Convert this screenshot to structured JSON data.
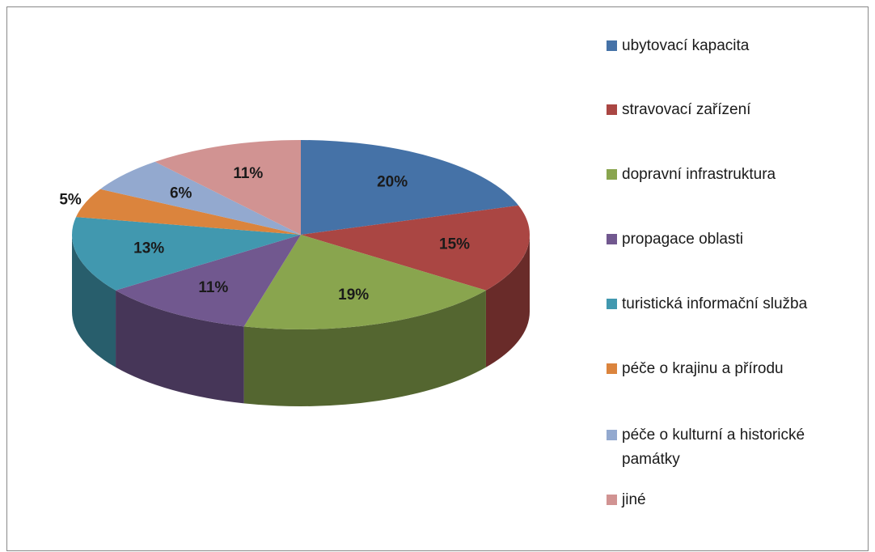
{
  "chart_data": {
    "type": "pie3d",
    "categories": [
      "ubytovací kapacita",
      "stravovací zařízení",
      "dopravní infrastruktura",
      "propagace oblasti",
      "turistická informační služba",
      "péče o krajinu a přírodu",
      "péče o kulturní a historické památky",
      "jiné"
    ],
    "values": [
      20,
      15,
      19,
      11,
      13,
      5,
      6,
      11
    ],
    "value_labels": [
      "20%",
      "15%",
      "19%",
      "11%",
      "13%",
      "5%",
      "6%",
      "11%"
    ],
    "colors": [
      "#4572a7",
      "#aa4643",
      "#89a54e",
      "#71588f",
      "#4198af",
      "#db843d",
      "#93a9cf",
      "#d19392"
    ],
    "legend": "right"
  }
}
